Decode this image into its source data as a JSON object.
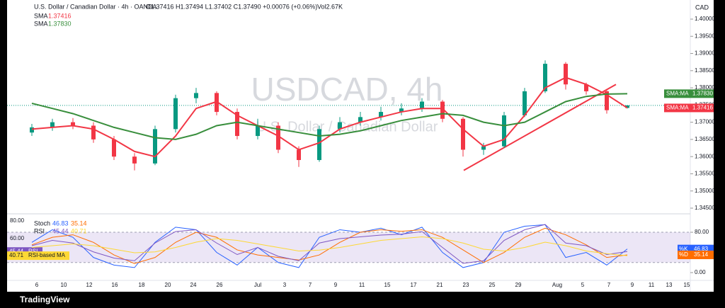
{
  "header": {
    "symbol": "U.S. Dollar / Canadian Dollar · 4h · OANDA",
    "ohlc": "O1.37416 H1.37494 L1.37402 C1.37490 +0.00076 (+0.06%)",
    "volume": "Vol2.67K"
  },
  "watermark": {
    "title": "USDCAD, 4h",
    "subtitle": "U.S. Dollar / Canadian Dollar"
  },
  "branding": "TradingView",
  "chart_data": [
    {
      "type": "candlestick",
      "currency": "CAD",
      "up_color": "#089981",
      "down_color": "#f23645",
      "x_labels": [
        "6",
        "10",
        "12",
        "16",
        "18",
        "20",
        "24",
        "26",
        "Jul",
        "3",
        "7",
        "9",
        "11",
        "15",
        "17",
        "21",
        "23",
        "25",
        "29",
        "Aug",
        "5",
        "7",
        "9",
        "11",
        "13",
        "15"
      ],
      "open": [
        1.367,
        1.3685,
        1.37,
        1.369,
        1.365,
        1.36,
        1.358,
        1.368,
        1.377,
        1.3785,
        1.373,
        1.366,
        1.369,
        1.362,
        1.359,
        1.368,
        1.37,
        1.3715,
        1.373,
        1.374,
        1.376,
        1.371,
        1.362,
        1.363,
        1.372,
        1.379,
        1.387,
        1.381,
        1.379,
        1.37416
      ],
      "high": [
        1.3695,
        1.371,
        1.3712,
        1.37,
        1.366,
        1.361,
        1.369,
        1.378,
        1.38,
        1.379,
        1.374,
        1.371,
        1.37,
        1.363,
        1.369,
        1.3715,
        1.373,
        1.3745,
        1.3755,
        1.377,
        1.3765,
        1.3715,
        1.364,
        1.373,
        1.38,
        1.388,
        1.3875,
        1.3815,
        1.3795,
        1.37494
      ],
      "low": [
        1.366,
        1.3675,
        1.368,
        1.364,
        1.359,
        1.356,
        1.3575,
        1.367,
        1.3755,
        1.372,
        1.365,
        1.365,
        1.361,
        1.357,
        1.3585,
        1.367,
        1.369,
        1.3705,
        1.372,
        1.373,
        1.37,
        1.36,
        1.3605,
        1.3625,
        1.3715,
        1.3785,
        1.3795,
        1.378,
        1.3725,
        1.37402
      ],
      "close": [
        1.3685,
        1.37,
        1.369,
        1.365,
        1.36,
        1.358,
        1.368,
        1.377,
        1.3785,
        1.373,
        1.366,
        1.369,
        1.362,
        1.359,
        1.368,
        1.37,
        1.3715,
        1.373,
        1.374,
        1.376,
        1.371,
        1.362,
        1.363,
        1.372,
        1.379,
        1.387,
        1.381,
        1.379,
        1.3735,
        1.3749
      ],
      "series": [
        {
          "name": "SMA",
          "badge": "SMA:MA",
          "color": "#f23645",
          "last_label": "1.37416",
          "values": [
            1.368,
            1.3685,
            1.369,
            1.368,
            1.365,
            1.3615,
            1.36,
            1.366,
            1.374,
            1.376,
            1.372,
            1.369,
            1.366,
            1.362,
            1.364,
            1.368,
            1.37,
            1.3715,
            1.373,
            1.374,
            1.374,
            1.368,
            1.363,
            1.365,
            1.372,
            1.38,
            1.383,
            1.381,
            1.378,
            1.37416
          ]
        },
        {
          "name": "SMA",
          "badge": "SMA:MA",
          "color": "#388e3c",
          "last_label": "1.37830",
          "values": [
            1.3755,
            1.374,
            1.3725,
            1.3705,
            1.3685,
            1.367,
            1.3655,
            1.365,
            1.3665,
            1.369,
            1.37,
            1.369,
            1.368,
            1.367,
            1.366,
            1.3665,
            1.3675,
            1.369,
            1.3705,
            1.3715,
            1.3725,
            1.372,
            1.37,
            1.369,
            1.37,
            1.373,
            1.376,
            1.3775,
            1.3782,
            1.3783
          ]
        }
      ],
      "ylim": [
        1.34376,
        1.40556
      ],
      "yticks": [
        {
          "value": 1.345,
          "label": "1.34500"
        },
        {
          "value": 1.35,
          "label": "1.35000"
        },
        {
          "value": 1.355,
          "label": "1.35500"
        },
        {
          "value": 1.36,
          "label": "1.36000"
        },
        {
          "value": 1.365,
          "label": "1.36500"
        },
        {
          "value": 1.37,
          "label": "1.37000"
        },
        {
          "value": 1.375,
          "label": "1.37500"
        },
        {
          "value": 1.38,
          "label": "1.38000"
        },
        {
          "value": 1.385,
          "label": "1.38500"
        },
        {
          "value": 1.39,
          "label": "1.39000"
        },
        {
          "value": 1.395,
          "label": "1.39500"
        },
        {
          "value": 1.4,
          "label": "1.40000"
        }
      ]
    },
    {
      "type": "oscillator",
      "legend_titles": [
        "Stoch",
        "RSI"
      ],
      "series": [
        {
          "name": "%K",
          "axis": "y2",
          "color": "#2962ff",
          "values": [
            60,
            85,
            70,
            30,
            15,
            10,
            60,
            90,
            85,
            40,
            15,
            50,
            20,
            10,
            70,
            85,
            80,
            88,
            75,
            90,
            40,
            10,
            20,
            80,
            92,
            95,
            30,
            40,
            15,
            46.83
          ]
        },
        {
          "name": "%D",
          "axis": "y2",
          "color": "#ff6d00",
          "values": [
            55,
            70,
            75,
            60,
            35,
            18,
            30,
            60,
            80,
            70,
            45,
            35,
            30,
            25,
            35,
            60,
            80,
            85,
            82,
            85,
            70,
            45,
            20,
            40,
            70,
            88,
            75,
            55,
            30,
            35.14
          ]
        },
        {
          "name": "RSI",
          "color": "#7e57c2",
          "values": [
            52,
            58,
            55,
            45,
            38,
            35,
            55,
            68,
            70,
            55,
            42,
            50,
            40,
            35,
            55,
            60,
            62,
            64,
            65,
            68,
            50,
            32,
            35,
            58,
            70,
            76,
            55,
            52,
            42,
            45.44
          ]
        },
        {
          "name": "RSI-based MA",
          "color": "#fdd835",
          "values": [
            50,
            52,
            54,
            52,
            48,
            44,
            45,
            50,
            56,
            60,
            58,
            54,
            50,
            46,
            47,
            50,
            54,
            58,
            60,
            62,
            60,
            55,
            48,
            46,
            50,
            56,
            52,
            46,
            43,
            40.71
          ]
        }
      ],
      "ylim": [
        13.6,
        85.6
      ],
      "yticks": [
        {
          "value": 80,
          "label": "80.00"
        },
        {
          "value": 60,
          "label": "60.00"
        }
      ],
      "y2lim": [
        -14,
        112.3
      ],
      "y2ticks": [
        {
          "value": 80,
          "label": "80.00"
        },
        {
          "value": 0,
          "label": "0.00"
        }
      ],
      "band": [
        20,
        80
      ]
    }
  ]
}
